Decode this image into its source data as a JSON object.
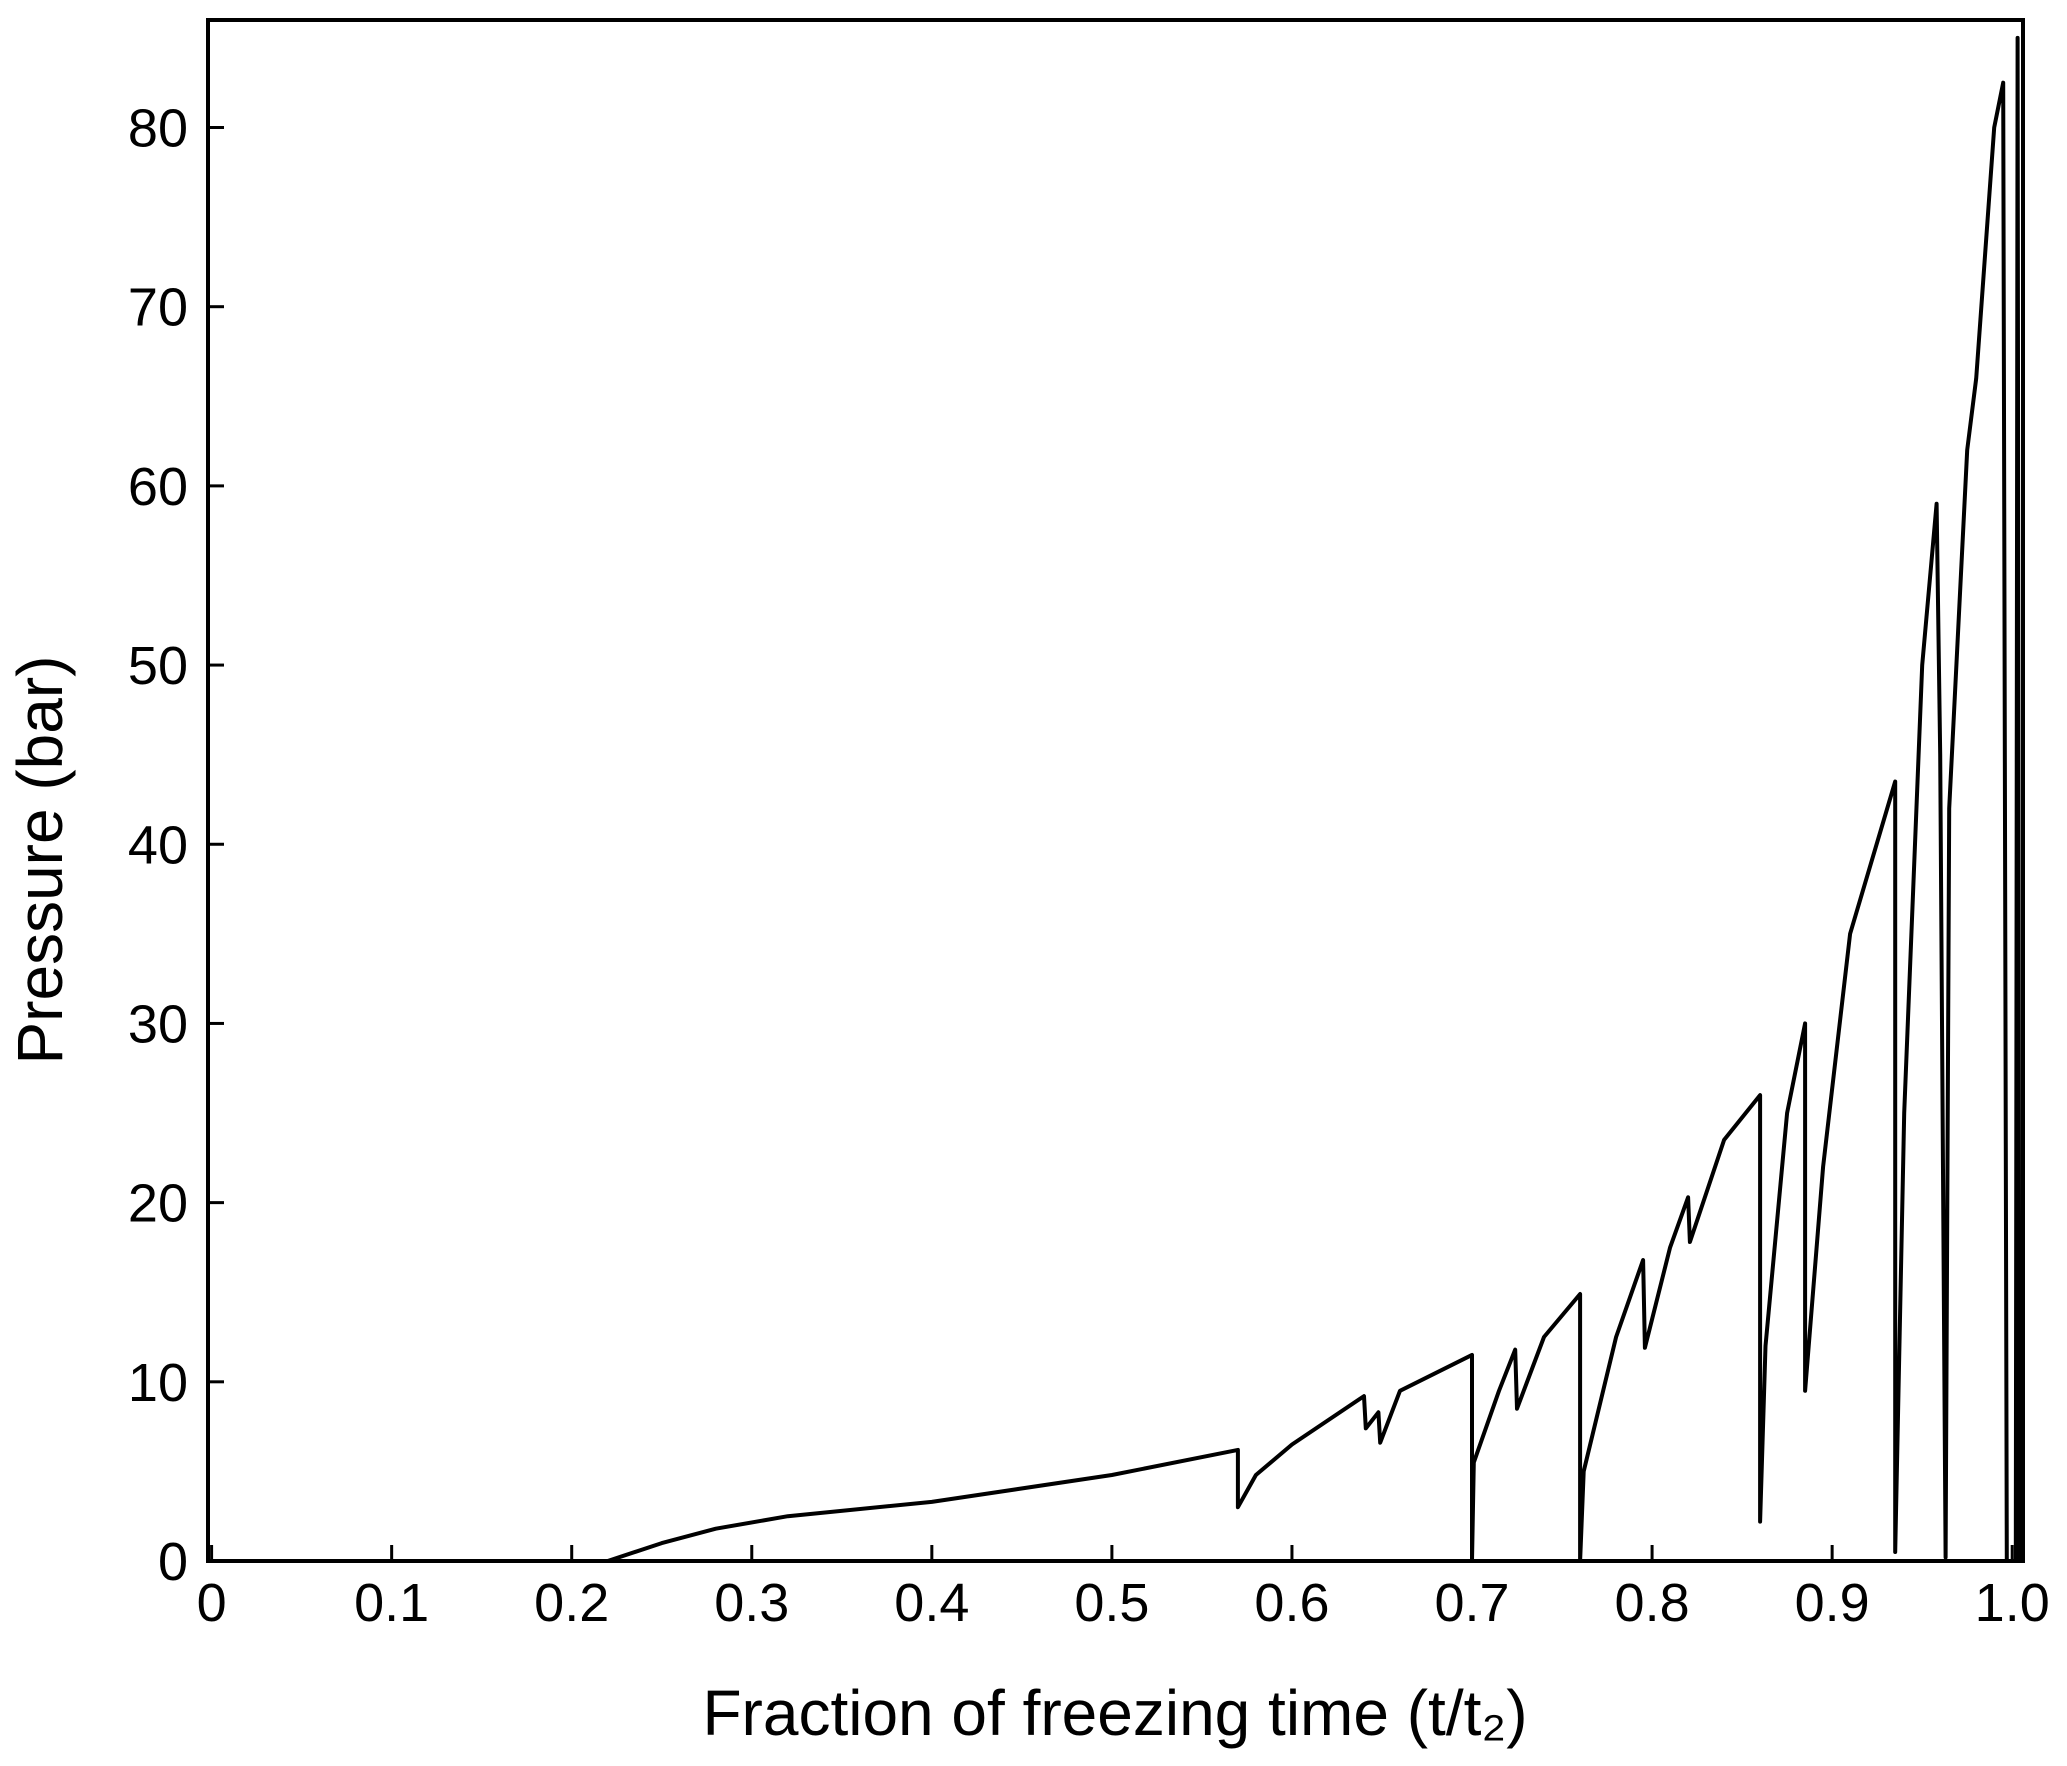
{
  "chart_data": {
    "type": "line",
    "x_label": "Fraction of freezing time (t/t₂)",
    "y_label": "Pressure (bar)",
    "xlim": [
      -0.002,
      1.006
    ],
    "ylim": [
      0,
      86
    ],
    "xticks": [
      0,
      0.1,
      0.2,
      0.3,
      0.4,
      0.5,
      0.6,
      0.7,
      0.8,
      0.9,
      {
        "value": 1,
        "label": "1.0"
      }
    ],
    "yticks": [
      0,
      10,
      20,
      30,
      40,
      50,
      60,
      70,
      80
    ],
    "series": [
      {
        "color": "#000000",
        "x": [
          0,
          0.22,
          0.25,
          0.28,
          0.32,
          0.4,
          0.5,
          0.57,
          0.57,
          0.58,
          0.6,
          0.64,
          0.641,
          0.648,
          0.649,
          0.66,
          0.7,
          0.7,
          0.701,
          0.715,
          0.724,
          0.725,
          0.74,
          0.76,
          0.76,
          0.762,
          0.78,
          0.795,
          0.796,
          0.81,
          0.82,
          0.821,
          0.84,
          0.86,
          0.86,
          0.863,
          0.875,
          0.885,
          0.885,
          0.895,
          0.91,
          0.935,
          0.935,
          0.94,
          0.95,
          0.958,
          0.96,
          0.963,
          0.965,
          0.975,
          0.98,
          0.99,
          0.995,
          0.997,
          1.002,
          1.003,
          1.004
        ],
        "values": [
          0,
          0,
          1.0,
          1.8,
          2.5,
          3.3,
          4.8,
          6.2,
          3.0,
          4.8,
          6.5,
          9.2,
          7.4,
          8.3,
          6.6,
          9.5,
          11.5,
          0,
          5.5,
          9.5,
          11.8,
          8.5,
          12.5,
          14.9,
          0,
          5,
          12.5,
          16.8,
          11.9,
          17.5,
          20.3,
          17.8,
          23.5,
          26,
          2.2,
          12,
          25,
          30,
          9.5,
          22,
          35,
          43.5,
          0.5,
          25,
          50,
          59,
          45,
          0.2,
          42,
          62,
          66,
          80,
          82.5,
          0,
          0,
          85,
          0
        ]
      }
    ]
  }
}
